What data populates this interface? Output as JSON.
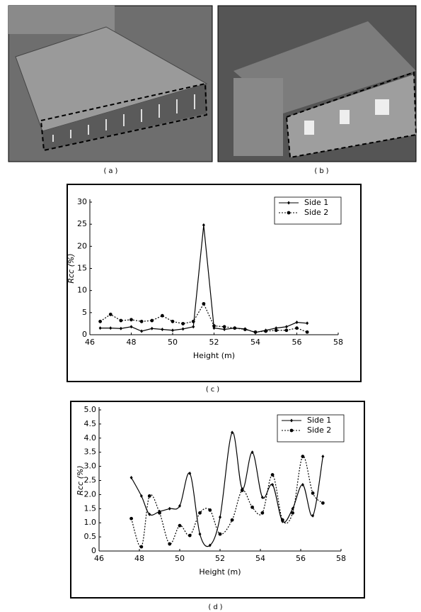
{
  "captions": {
    "a": "(a)",
    "b": "(b)",
    "c": "(c)",
    "d": "(d)"
  },
  "chart_data": [
    {
      "type": "line",
      "smooth": false,
      "xlabel": "Height (m)",
      "ylabel": "Rcc (%)",
      "xlim": [
        46,
        58
      ],
      "xticks": [
        46,
        48,
        50,
        52,
        54,
        56,
        58
      ],
      "ylim": [
        0,
        30
      ],
      "yticks": [
        0,
        5,
        10,
        15,
        20,
        25,
        30
      ],
      "legend": "upper right",
      "x": [
        46.5,
        47,
        47.5,
        48,
        48.5,
        49,
        49.5,
        50,
        50.5,
        51,
        51.5,
        52,
        52.5,
        53,
        53.5,
        54,
        54.5,
        55,
        55.5,
        56,
        56.5
      ],
      "series": [
        {
          "name": "Side 1",
          "color": "#000000",
          "line_style": "solid",
          "marker": "diamond",
          "values": [
            1.5,
            1.5,
            1.4,
            1.8,
            0.8,
            1.4,
            1.2,
            1.0,
            1.3,
            1.8,
            24.8,
            1.5,
            1.2,
            1.5,
            1.3,
            0.5,
            1.0,
            1.5,
            1.8,
            2.8,
            2.6
          ]
        },
        {
          "name": "Side 2",
          "color": "#000000",
          "line_style": "dotted",
          "marker": "circle",
          "values": [
            3.0,
            4.6,
            3.2,
            3.4,
            3.0,
            3.2,
            4.3,
            3.0,
            2.5,
            3.0,
            7.0,
            2.0,
            1.8,
            1.5,
            1.2,
            0.6,
            0.8,
            1.0,
            1.0,
            1.5,
            0.6
          ]
        }
      ]
    },
    {
      "type": "line",
      "smooth": true,
      "xlabel": "Height (m)",
      "ylabel": "Rcc (%)",
      "xlim": [
        46,
        58
      ],
      "xticks": [
        46,
        48,
        50,
        52,
        54,
        56,
        58
      ],
      "ylim": [
        0,
        5
      ],
      "yticks": [
        0,
        0.5,
        {
          "value": 1,
          "label": "1.0"
        },
        1.5,
        {
          "value": 2,
          "label": "2.0"
        },
        2.5,
        {
          "value": 3,
          "label": "3.0"
        },
        3.5,
        {
          "value": 4,
          "label": "4.0"
        },
        4.5,
        {
          "value": 5,
          "label": "5.0"
        }
      ],
      "legend": "upper right",
      "x": [
        47.6,
        48.1,
        48.5,
        49,
        49.5,
        50,
        50.5,
        51,
        51.5,
        52,
        52.6,
        53.1,
        53.6,
        54.1,
        54.6,
        55.1,
        55.6,
        56.1,
        56.6,
        57.1
      ],
      "series": [
        {
          "name": "Side 1",
          "color": "#000000",
          "line_style": "solid",
          "marker": "diamond",
          "values": [
            2.6,
            1.95,
            1.3,
            1.4,
            1.5,
            1.6,
            2.75,
            0.6,
            0.2,
            1.2,
            4.2,
            2.2,
            3.5,
            1.9,
            2.35,
            1.05,
            1.5,
            2.35,
            1.25,
            3.35
          ]
        },
        {
          "name": "Side 2",
          "color": "#000000",
          "line_style": "dotted",
          "marker": "circle",
          "values": [
            1.15,
            0.15,
            1.95,
            1.35,
            0.25,
            0.9,
            0.55,
            1.35,
            1.45,
            0.6,
            1.1,
            2.15,
            1.55,
            1.35,
            2.7,
            1.1,
            1.35,
            3.35,
            2.05,
            1.7
          ]
        }
      ]
    }
  ]
}
